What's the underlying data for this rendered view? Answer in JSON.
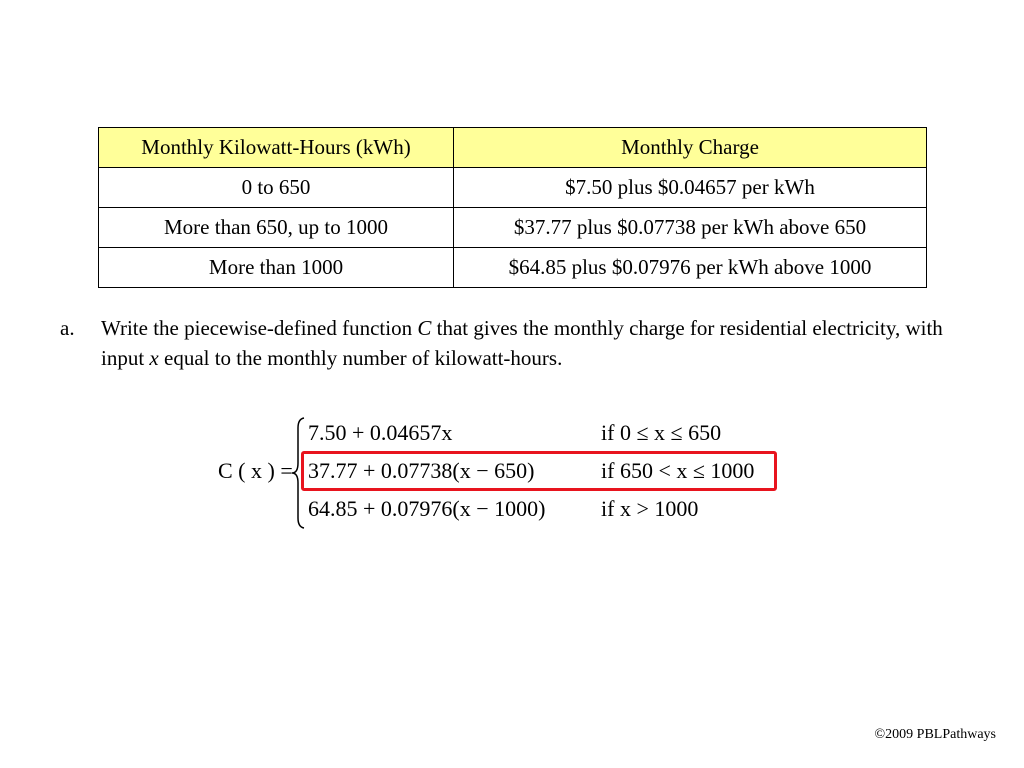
{
  "table": {
    "headers": [
      "Monthly Kilowatt-Hours (kWh)",
      "Monthly Charge"
    ],
    "rows": [
      [
        "0 to 650",
        "$7.50 plus $0.04657 per kWh"
      ],
      [
        "More than 650, up to 1000",
        "$37.77 plus $0.07738 per kWh above 650"
      ],
      [
        "More than 1000",
        "$64.85 plus $0.07976 per kWh above 1000"
      ]
    ]
  },
  "question": {
    "marker": "a.",
    "text_1": "Write the piecewise-defined function ",
    "var_c": "C",
    "text_2": " that gives the monthly charge for residential electricity, with input ",
    "var_x": "x",
    "text_3": " equal to the monthly number of kilowatt-hours."
  },
  "function": {
    "lhs": "C ( x ) =",
    "cases": [
      {
        "expression": "7.50 + 0.04657x",
        "condition": "if 0 ≤ x ≤ 650"
      },
      {
        "expression": "37.77 + 0.07738(x − 650)",
        "condition": "if 650 < x ≤ 1000"
      },
      {
        "expression": "64.85 + 0.07976(x − 1000)",
        "condition": "if x > 1000"
      }
    ],
    "highlighted_case": 1,
    "highlight_color": "#e8141e"
  },
  "footer": {
    "copyright": "©2009 PBLPathways"
  }
}
